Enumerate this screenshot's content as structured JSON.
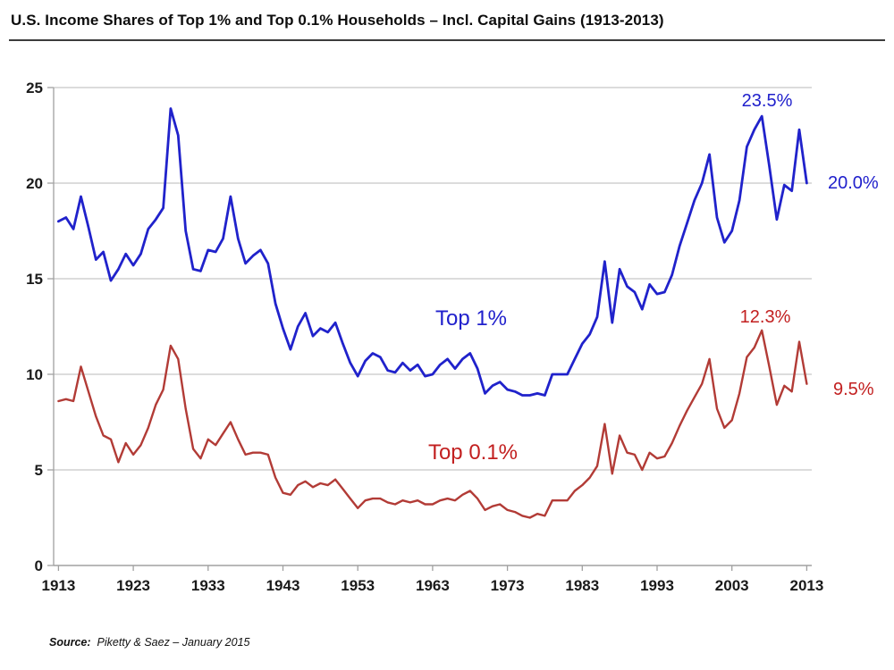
{
  "title": "U.S. Income Shares of Top 1% and Top 0.1% Households – Incl. Capital Gains (1913-2013)",
  "source": {
    "prefix": "Source:",
    "text": "Piketty & Saez – January 2015"
  },
  "annotations": {
    "top1_peak": "23.5%",
    "top1_end": "20.0%",
    "top01_peak": "12.3%",
    "top01_end": "9.5%",
    "top1_series": "Top 1%",
    "top01_series": "Top 0.1%"
  },
  "colors": {
    "top1_line": "#2022cb",
    "top01_line": "#b23b36",
    "top1_text": "#2020cc",
    "top01_text": "#c21f1f",
    "grid": "#c8c8c8",
    "axis": "#a0a0a0",
    "tick_text": "#1a1a1a"
  },
  "chart_data": {
    "type": "line",
    "title": "U.S. Income Shares of Top 1% and Top 0.1% Households – Incl. Capital Gains (1913-2013)",
    "xlabel": "",
    "ylabel": "",
    "xlim": [
      1913,
      2013
    ],
    "ylim": [
      0,
      25
    ],
    "grid": true,
    "legend_position": "inline-annotations",
    "yticks": [
      0,
      5,
      10,
      15,
      20,
      25
    ],
    "ytick_labels": [
      "0",
      "5",
      "10",
      "15",
      "20",
      "25"
    ],
    "xticks": [
      1913,
      1923,
      1933,
      1943,
      1953,
      1963,
      1973,
      1983,
      1993,
      2003,
      2013
    ],
    "xtick_labels": [
      "1913",
      "1923",
      "1933",
      "1943",
      "1953",
      "1963",
      "1973",
      "1983",
      "1993",
      "2003",
      "2013"
    ],
    "x": [
      1913,
      1914,
      1915,
      1916,
      1917,
      1918,
      1919,
      1920,
      1921,
      1922,
      1923,
      1924,
      1925,
      1926,
      1927,
      1928,
      1929,
      1930,
      1931,
      1932,
      1933,
      1934,
      1935,
      1936,
      1937,
      1938,
      1939,
      1940,
      1941,
      1942,
      1943,
      1944,
      1945,
      1946,
      1947,
      1948,
      1949,
      1950,
      1951,
      1952,
      1953,
      1954,
      1955,
      1956,
      1957,
      1958,
      1959,
      1960,
      1961,
      1962,
      1963,
      1964,
      1965,
      1966,
      1967,
      1968,
      1969,
      1970,
      1971,
      1972,
      1973,
      1974,
      1975,
      1976,
      1977,
      1978,
      1979,
      1980,
      1981,
      1982,
      1983,
      1984,
      1985,
      1986,
      1987,
      1988,
      1989,
      1990,
      1991,
      1992,
      1993,
      1994,
      1995,
      1996,
      1997,
      1998,
      1999,
      2000,
      2001,
      2002,
      2003,
      2004,
      2005,
      2006,
      2007,
      2008,
      2009,
      2010,
      2011,
      2012,
      2013
    ],
    "series": [
      {
        "name": "Top 1%",
        "color": "#2022cb",
        "values": [
          18.0,
          18.2,
          17.6,
          19.3,
          17.7,
          16.0,
          16.4,
          14.9,
          15.5,
          16.3,
          15.7,
          16.3,
          17.6,
          18.1,
          18.7,
          23.9,
          22.5,
          17.5,
          15.5,
          15.4,
          16.5,
          16.4,
          17.1,
          19.3,
          17.1,
          15.8,
          16.2,
          16.5,
          15.8,
          13.7,
          12.4,
          11.3,
          12.5,
          13.2,
          12.0,
          12.4,
          12.2,
          12.7,
          11.6,
          10.6,
          9.9,
          10.7,
          11.1,
          10.9,
          10.2,
          10.1,
          10.6,
          10.2,
          10.5,
          9.9,
          10.0,
          10.5,
          10.8,
          10.3,
          10.8,
          11.1,
          10.3,
          9.0,
          9.4,
          9.6,
          9.2,
          9.1,
          8.9,
          8.9,
          9.0,
          8.9,
          10.0,
          10.0,
          10.0,
          10.8,
          11.6,
          12.1,
          13.0,
          15.9,
          12.7,
          15.5,
          14.6,
          14.3,
          13.4,
          14.7,
          14.2,
          14.3,
          15.2,
          16.7,
          17.9,
          19.1,
          20.0,
          21.5,
          18.2,
          16.9,
          17.5,
          19.1,
          21.9,
          22.8,
          23.5,
          20.9,
          18.1,
          19.9,
          19.6,
          22.8,
          20.0
        ]
      },
      {
        "name": "Top 0.1%",
        "color": "#b23b36",
        "values": [
          8.6,
          8.7,
          8.6,
          10.4,
          9.1,
          7.8,
          6.8,
          6.6,
          5.4,
          6.4,
          5.8,
          6.3,
          7.2,
          8.4,
          9.2,
          11.5,
          10.8,
          8.2,
          6.1,
          5.6,
          6.6,
          6.3,
          6.9,
          7.5,
          6.6,
          5.8,
          5.9,
          5.9,
          5.8,
          4.6,
          3.8,
          3.7,
          4.2,
          4.4,
          4.1,
          4.3,
          4.2,
          4.5,
          4.0,
          3.5,
          3.0,
          3.4,
          3.5,
          3.5,
          3.3,
          3.2,
          3.4,
          3.3,
          3.4,
          3.2,
          3.2,
          3.4,
          3.5,
          3.4,
          3.7,
          3.9,
          3.5,
          2.9,
          3.1,
          3.2,
          2.9,
          2.8,
          2.6,
          2.5,
          2.7,
          2.6,
          3.4,
          3.4,
          3.4,
          3.9,
          4.2,
          4.6,
          5.2,
          7.4,
          4.8,
          6.8,
          5.9,
          5.8,
          5.0,
          5.9,
          5.6,
          5.7,
          6.4,
          7.3,
          8.1,
          8.8,
          9.5,
          10.8,
          8.2,
          7.2,
          7.6,
          9.0,
          10.9,
          11.4,
          12.3,
          10.4,
          8.4,
          9.4,
          9.1,
          11.7,
          9.5
        ]
      }
    ],
    "annotations": [
      {
        "text": "23.5%",
        "series": "Top 1%",
        "year": 2007
      },
      {
        "text": "20.0%",
        "series": "Top 1%",
        "year": 2013
      },
      {
        "text": "12.3%",
        "series": "Top 0.1%",
        "year": 2007
      },
      {
        "text": "9.5%",
        "series": "Top 0.1%",
        "year": 2013
      },
      {
        "text": "Top 1%",
        "series": "Top 1%",
        "role": "series-label"
      },
      {
        "text": "Top 0.1%",
        "series": "Top 0.1%",
        "role": "series-label"
      }
    ]
  }
}
